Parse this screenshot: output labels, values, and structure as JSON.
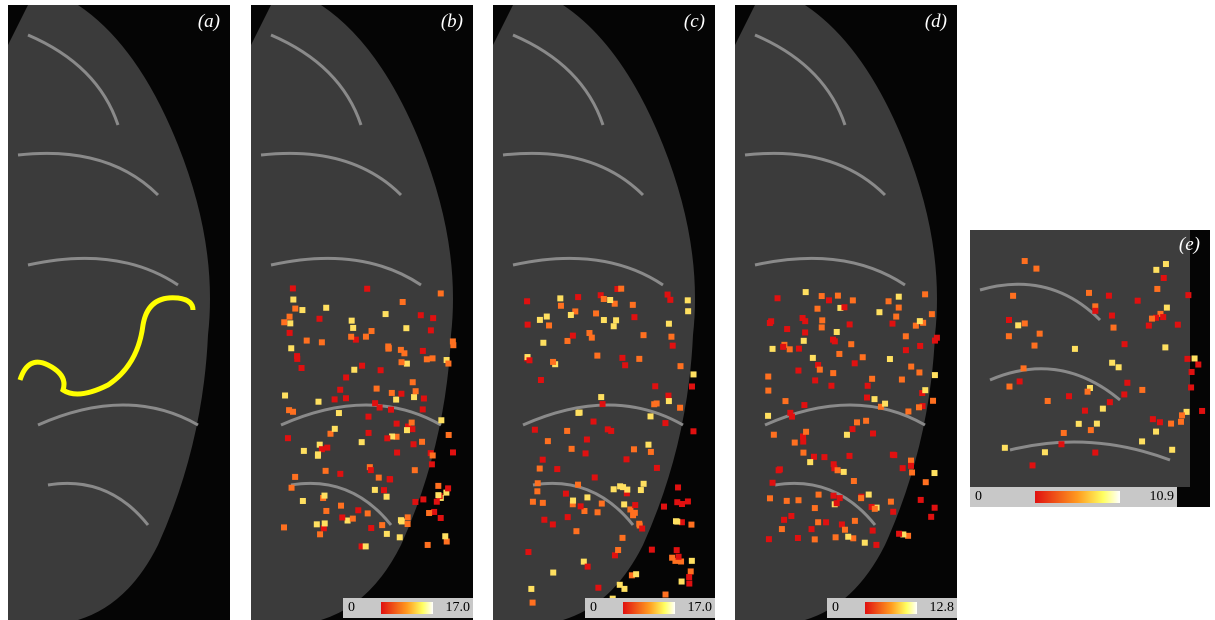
{
  "panels": [
    {
      "label": "(a)"
    },
    {
      "label": "(b)",
      "colorbar": {
        "min": "0",
        "max": "17.0"
      }
    },
    {
      "label": "(c)",
      "colorbar": {
        "min": "0",
        "max": "17.0"
      }
    },
    {
      "label": "(d)",
      "colorbar": {
        "min": "0",
        "max": "12.8"
      }
    },
    {
      "label": "(e)",
      "colorbar": {
        "min": "0",
        "max": "10.9"
      }
    }
  ]
}
